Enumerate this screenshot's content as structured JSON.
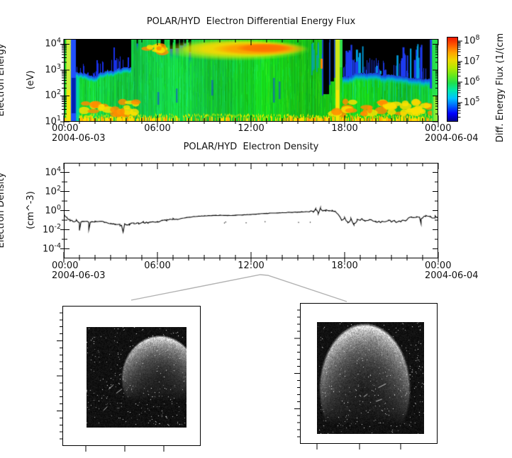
{
  "spectrogram_panel": {
    "title": "POLAR/HYD  Electron Differential Energy Flux",
    "y_label_line1": "Electron Energy",
    "y_label_line2": "(eV)",
    "y_tick_labels": [
      "10^4",
      "10^3",
      "10^2",
      "10^1"
    ],
    "colorbar": {
      "label": "Diff. Energy Flux (1/(cm",
      "tick_labels": [
        "10^8",
        "10^7",
        "10^6",
        "10^5"
      ],
      "gradient_bottom_to_top": [
        "#000090",
        "#0000ff",
        "#0064ff",
        "#00c3ff",
        "#00e8b0",
        "#1ee04e",
        "#66e81c",
        "#b4e800",
        "#ecd800",
        "#ffa400",
        "#ff5a00",
        "#f01800"
      ]
    }
  },
  "density_panel": {
    "title": "POLAR/HYD  Electron Density",
    "y_label_line1": "Electron Density",
    "y_label_line2": "(cm^-3)",
    "y_tick_labels": [
      "10^4",
      "10^2",
      "10^0",
      "10^-2",
      "10^-4"
    ]
  },
  "time_axis": {
    "tick_labels": [
      "00:00",
      "06:00",
      "12:00",
      "18:00",
      "00:00"
    ],
    "start_date": "2004-06-03",
    "end_date": "2004-06-04"
  },
  "chart_data": [
    {
      "type": "heatmap",
      "title": "POLAR/HYD  Electron Differential Energy Flux",
      "x_range_hours": [
        0,
        24
      ],
      "x_tick_labels": [
        "00:00",
        "06:00",
        "12:00",
        "18:00",
        "00:00"
      ],
      "y_label": "Electron Energy (eV)",
      "y_scale": "log",
      "y_range_ev": [
        10,
        16000
      ],
      "color_scale": "rainbow, log Diff. Energy Flux ~1e4.5 (blue) to ~1e8.5 (red)",
      "features": [
        {
          "render": "background",
          "t_hours": [
            0,
            24
          ],
          "energy_ev": [
            10,
            16000
          ],
          "flux": "~1e6 green background"
        },
        {
          "render": "bottom_band",
          "t_hours": [
            0,
            24
          ],
          "energy_ev": [
            10,
            18
          ],
          "flux": "~1e7 yellow-orange enhancement along lowest energies, sparser 6.5-14.5 h"
        },
        {
          "render": "patches",
          "t_hours": [
            1.2,
            4.8
          ],
          "energy_ev": [
            20,
            60
          ],
          "flux": "~1e7 yellow/orange patches"
        },
        {
          "render": "bright_column",
          "t_hours": [
            0.15,
            0.45
          ],
          "energy_ev": [
            10,
            16000
          ],
          "color": "#cdf03c",
          "flux": "bright yellow-green column"
        },
        {
          "render": "blue_column",
          "t_hours": [
            0.45,
            0.8
          ],
          "energy_ev": [
            10,
            16000
          ],
          "flux": "blue low-flux column"
        },
        {
          "render": "dropout_left",
          "t_hours": [
            0.8,
            4.3
          ],
          "energy_above_ev": 800,
          "flux": "black (below threshold) with blue fringe and spikes"
        },
        {
          "render": "picket",
          "t_hours": [
            4.3,
            8.3
          ],
          "energy_ev": [
            1000,
            16000
          ],
          "flux": "alternating green columns and blue/black dropouts at high energy"
        },
        {
          "render": "patches",
          "t_hours": [
            4.9,
            6.5
          ],
          "energy_ev": [
            3000,
            10000
          ],
          "flux": "~1e7 yellow patches"
        },
        {
          "render": "hot_band",
          "t_hours": [
            7.5,
            15.5
          ],
          "core_t_hours": [
            9.5,
            15.5
          ],
          "energy_ev": [
            4000,
            16000
          ],
          "flux": "~1e7.5-1e8 yellow band with orange core"
        },
        {
          "render": "ragged",
          "t_hours": [
            15.8,
            17.3
          ],
          "energy_ev": [
            300,
            16000
          ],
          "flux": "ragged black/blue dropout columns"
        },
        {
          "render": "bright_column",
          "t_hours": [
            17.4,
            17.6
          ],
          "energy_ev": [
            10,
            16000
          ],
          "color": "#cde818",
          "flux": "bright yellow-green column"
        },
        {
          "render": "dropout_right",
          "t_hours": [
            17.9,
            23.5
          ],
          "energy_above_ev": 500,
          "flux": "black dropout with blue/cyan streak clusters"
        },
        {
          "render": "patches",
          "t_hours": [
            17.3,
            23.9
          ],
          "energy_ev": [
            20,
            60
          ],
          "flux": "~1e7 yellow/orange patches"
        },
        {
          "render": "green_column",
          "t_hours": [
            23.6,
            24
          ],
          "energy_ev": [
            10,
            16000
          ],
          "flux": "green column at day end"
        }
      ]
    },
    {
      "type": "line",
      "title": "POLAR/HYD  Electron Density",
      "y_label": "Electron Density (cm^-3)",
      "y_scale": "log",
      "y_range": [
        1e-05,
        100000.0
      ],
      "x_hours": [
        0,
        0.2,
        0.4,
        0.6,
        0.8,
        1,
        1.3,
        1.6,
        2,
        2.3,
        2.6,
        3,
        3.3,
        3.6,
        3.9,
        4.2,
        4.5,
        4.8,
        5.1,
        5.4,
        5.7,
        6,
        6.3,
        6.6,
        7,
        7.3,
        7.6,
        8,
        8.5,
        9,
        9.5,
        10,
        10.5,
        11,
        11.5,
        12,
        12.5,
        13,
        13.5,
        14,
        14.5,
        15,
        15.5,
        16,
        16.15,
        16.3,
        16.45,
        16.6,
        16.8,
        17,
        17.2,
        17.4,
        17.6,
        17.8,
        18,
        18.2,
        18.4,
        18.6,
        18.8,
        19,
        19.3,
        19.6,
        20,
        20.4,
        20.8,
        21.2,
        21.6,
        22,
        22.3,
        22.6,
        22.9,
        23.2,
        23.5,
        23.8,
        24
      ],
      "density_cm3": [
        0.45,
        0.18,
        0.1,
        0.07,
        0.09,
        0.06,
        0.08,
        0.07,
        0.07,
        0.08,
        0.06,
        0.05,
        0.035,
        0.03,
        0.04,
        0.035,
        0.05,
        0.045,
        0.06,
        0.05,
        0.07,
        0.06,
        0.09,
        0.1,
        0.13,
        0.12,
        0.16,
        0.2,
        0.25,
        0.28,
        0.3,
        0.32,
        0.3,
        0.33,
        0.35,
        0.4,
        0.45,
        0.5,
        0.55,
        0.6,
        0.65,
        0.7,
        0.75,
        0.8,
        1.5,
        0.5,
        1.8,
        0.9,
        1.1,
        0.85,
        0.9,
        0.7,
        0.3,
        0.12,
        0.15,
        0.05,
        0.12,
        0.04,
        0.1,
        0.12,
        0.09,
        0.11,
        0.08,
        0.07,
        0.08,
        0.07,
        0.09,
        0.12,
        0.18,
        0.22,
        0.15,
        0.25,
        0.2,
        0.22,
        0.25
      ]
    }
  ],
  "aurora_images": {
    "left": {
      "content": "grainy UV imager frame: bright planetary crescent in upper right over dark speckled star field"
    },
    "right": {
      "content": "grainy UV imager frame: larger bright planetary crescent centered upper left over dark speckled star field"
    }
  }
}
